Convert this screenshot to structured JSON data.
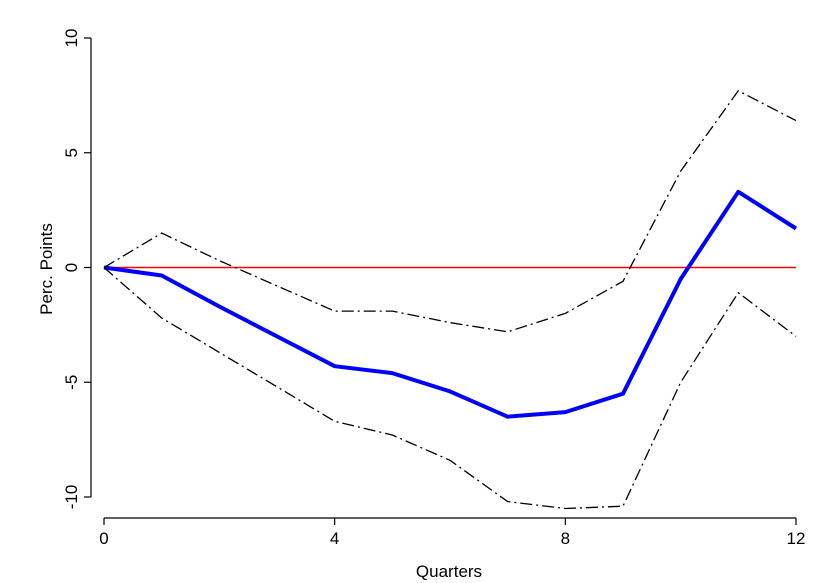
{
  "chart_data": {
    "type": "line",
    "title": "",
    "xlabel": "Quarters",
    "ylabel": "Perc. Points",
    "xlim": [
      0,
      12
    ],
    "ylim": [
      -10,
      10
    ],
    "xticks": [
      0,
      4,
      8,
      12
    ],
    "xtick_labels": [
      "0",
      "4",
      "8",
      "12"
    ],
    "yticks": [
      -10,
      -5,
      0,
      5,
      10
    ],
    "ytick_labels": [
      "-10",
      "-5",
      "0",
      "5",
      "10"
    ],
    "grid": false,
    "legend": "none",
    "x": [
      0,
      1,
      2,
      3,
      4,
      5,
      6,
      7,
      8,
      9,
      10,
      11,
      12
    ],
    "series": [
      {
        "role": "estimate",
        "style": "solid",
        "color": "#0000ff",
        "values": [
          0,
          -0.35,
          -1.7,
          -3.0,
          -4.3,
          -4.6,
          -5.4,
          -6.5,
          -6.3,
          -5.5,
          -0.5,
          3.3,
          1.7
        ]
      },
      {
        "role": "upper-band",
        "style": "dash-dot",
        "color": "#000000",
        "values": [
          0,
          1.5,
          0.3,
          -0.8,
          -1.9,
          -1.9,
          -2.4,
          -2.8,
          -2.0,
          -0.6,
          4.2,
          7.7,
          6.4
        ]
      },
      {
        "role": "lower-band",
        "style": "dash-dot",
        "color": "#000000",
        "values": [
          0,
          -2.2,
          -3.7,
          -5.2,
          -6.7,
          -7.3,
          -8.4,
          -10.2,
          -10.5,
          -10.4,
          -5.0,
          -1.1,
          -3.0
        ]
      }
    ],
    "reference_line": {
      "y": 0,
      "color": "#ff0000"
    }
  }
}
